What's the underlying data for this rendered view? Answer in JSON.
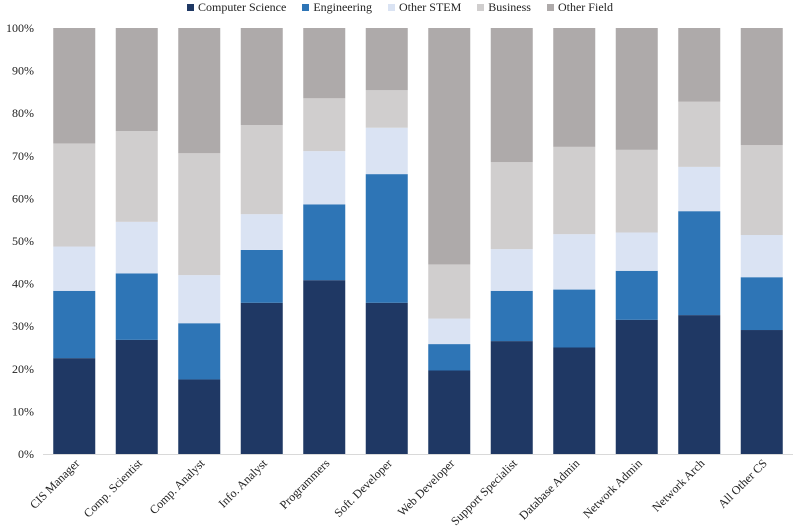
{
  "chart_data": {
    "type": "bar",
    "stacked": true,
    "title": "",
    "xlabel": "",
    "ylabel": "",
    "ylim": [
      0,
      100
    ],
    "yticks": [
      "0%",
      "10%",
      "20%",
      "30%",
      "40%",
      "50%",
      "60%",
      "70%",
      "80%",
      "90%",
      "100%"
    ],
    "legend_position": "top",
    "grid": false,
    "categories": [
      "CIS Manager",
      "Comp. Scientist",
      "Comp. Analyst",
      "Info. Analyst",
      "Programmers",
      "Soft. Developer",
      "Web Developer",
      "Support Specialist",
      "Database Admin",
      "Network Admin",
      "Network Arch",
      "All Other CS"
    ],
    "series": [
      {
        "name": "Computer Science",
        "color": "#1f3864",
        "values": [
          22.5,
          26.8,
          17.5,
          35.5,
          40.8,
          35.5,
          19.6,
          26.5,
          25.0,
          31.5,
          32.6,
          29.1
        ]
      },
      {
        "name": "Engineering",
        "color": "#2e75b6",
        "values": [
          15.8,
          15.6,
          13.2,
          12.4,
          17.8,
          30.2,
          6.2,
          11.8,
          13.6,
          11.5,
          24.4,
          12.4
        ]
      },
      {
        "name": "Other STEM",
        "color": "#dae3f3",
        "values": [
          10.4,
          12.1,
          11.3,
          8.4,
          12.5,
          10.9,
          6.0,
          9.8,
          13.0,
          9.0,
          10.4,
          9.9
        ]
      },
      {
        "name": "Business",
        "color": "#d0cece",
        "values": [
          24.2,
          21.3,
          28.6,
          20.9,
          12.4,
          8.8,
          12.7,
          20.4,
          20.5,
          19.4,
          15.3,
          21.1
        ]
      },
      {
        "name": "Other Field",
        "color": "#aeaaaa",
        "values": [
          27.1,
          24.2,
          29.4,
          22.8,
          16.5,
          14.6,
          55.5,
          31.5,
          27.9,
          28.6,
          17.3,
          27.5
        ]
      }
    ]
  },
  "colors": {
    "axis": "#d9d9d9",
    "text": "#222222"
  }
}
